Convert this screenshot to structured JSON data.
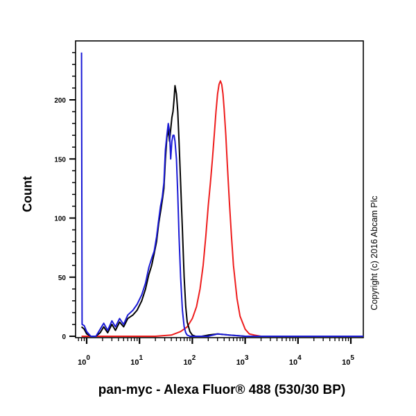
{
  "chart_data": {
    "type": "line",
    "subtype": "flow-cytometry-histogram",
    "title": "",
    "xlabel": "pan-myc - Alexa Fluor® 488 (530/30 BP)",
    "ylabel": "Count",
    "xscale": "log",
    "xlim": [
      0.8,
      180000
    ],
    "ylim": [
      0,
      240
    ],
    "x_tick_labels": [
      "10^0",
      "10^1",
      "10^2",
      "10^3",
      "10^4",
      "10^5"
    ],
    "y_tick_labels": [
      "0",
      "50",
      "100",
      "150",
      "200"
    ],
    "y_ticks": [
      0,
      50,
      100,
      150,
      200
    ],
    "grid": false,
    "legend": "none",
    "annotation": "Copyright (c) 2016 Abcam Plc",
    "series": [
      {
        "name": "black",
        "color": "#000000",
        "x": [
          0.8,
          0.9,
          1.0,
          1.2,
          1.5,
          1.8,
          2.1,
          2.5,
          3.0,
          3.5,
          4.2,
          5.0,
          6.0,
          7.5,
          9.0,
          11,
          13,
          15,
          17,
          19,
          21,
          23,
          25,
          27,
          29,
          31,
          33,
          35,
          37,
          39,
          41,
          43,
          45,
          47,
          50,
          53,
          56,
          60,
          65,
          70,
          75,
          80,
          90,
          100,
          115,
          130,
          150,
          200,
          300,
          500,
          1000,
          100000,
          180000
        ],
        "values": [
          8,
          6,
          2,
          0,
          0,
          3,
          8,
          3,
          10,
          5,
          12,
          8,
          15,
          18,
          22,
          30,
          40,
          52,
          60,
          70,
          80,
          95,
          105,
          115,
          125,
          150,
          168,
          175,
          165,
          175,
          185,
          190,
          200,
          212,
          205,
          190,
          165,
          130,
          90,
          50,
          25,
          12,
          4,
          1,
          0,
          0,
          0,
          1,
          2,
          1,
          0,
          0,
          0
        ]
      },
      {
        "name": "blue",
        "color": "#1a1ad6",
        "x": [
          0.8,
          0.82,
          0.9,
          1.0,
          1.2,
          1.5,
          1.8,
          2.1,
          2.5,
          3.0,
          3.5,
          4.2,
          5.0,
          6.0,
          7.5,
          9.0,
          11,
          13,
          15,
          17,
          19,
          21,
          23,
          25,
          27,
          29,
          31,
          33,
          35,
          37,
          39,
          41,
          43,
          45,
          47,
          50,
          53,
          56,
          60,
          65,
          70,
          75,
          80,
          90,
          100,
          130,
          200,
          300,
          500,
          1000,
          100000,
          180000
        ],
        "values": [
          240,
          10,
          9,
          4,
          0,
          0,
          6,
          11,
          5,
          13,
          8,
          15,
          10,
          18,
          22,
          27,
          35,
          45,
          58,
          66,
          72,
          84,
          98,
          110,
          118,
          130,
          158,
          170,
          180,
          173,
          150,
          165,
          170,
          170,
          165,
          150,
          120,
          85,
          50,
          22,
          8,
          3,
          1,
          0,
          0,
          0,
          0,
          2,
          1,
          0,
          0,
          0
        ]
      },
      {
        "name": "red",
        "color": "#ee1c1c",
        "x": [
          0.8,
          20,
          40,
          60,
          80,
          100,
          120,
          140,
          160,
          180,
          200,
          220,
          240,
          260,
          280,
          300,
          320,
          340,
          360,
          380,
          400,
          430,
          460,
          500,
          550,
          600,
          700,
          800,
          1000,
          1200,
          1500,
          2000,
          180000
        ],
        "values": [
          0,
          0,
          1,
          4,
          8,
          15,
          25,
          40,
          60,
          85,
          110,
          130,
          150,
          170,
          190,
          205,
          213,
          216,
          213,
          205,
          192,
          170,
          145,
          115,
          85,
          60,
          32,
          17,
          6,
          2,
          1,
          0,
          0
        ]
      }
    ]
  }
}
